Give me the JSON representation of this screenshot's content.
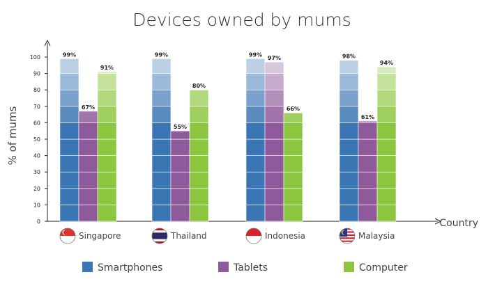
{
  "chart_data": {
    "type": "bar",
    "title": "Devices owned by mums",
    "ylabel": "% of mums",
    "xlabel": "Country",
    "ylim": [
      0,
      100
    ],
    "yticks": [
      0,
      10,
      20,
      30,
      40,
      50,
      60,
      70,
      80,
      90,
      100
    ],
    "grid": false,
    "legend_position": "bottom",
    "categories": [
      "Singapore",
      "Thailand",
      "Indonesia",
      "Malaysia"
    ],
    "category_flags": [
      "singapore-flag-icon",
      "thailand-flag-icon",
      "indonesia-flag-icon",
      "malaysia-flag-icon"
    ],
    "series": [
      {
        "name": "Smartphones",
        "color": "#3a75b4",
        "values": [
          99,
          99,
          99,
          98
        ],
        "labels": [
          "99%",
          "99%",
          "99%",
          "98%"
        ]
      },
      {
        "name": "Tablets",
        "color": "#8e5a9b",
        "values": [
          67,
          55,
          97,
          61
        ],
        "labels": [
          "67%",
          "55%",
          "97%",
          "61%"
        ]
      },
      {
        "name": "Computer",
        "color": "#8cc63f",
        "values": [
          91,
          80,
          66,
          94
        ],
        "labels": [
          "91%",
          "80%",
          "66%",
          "94%"
        ]
      }
    ]
  }
}
